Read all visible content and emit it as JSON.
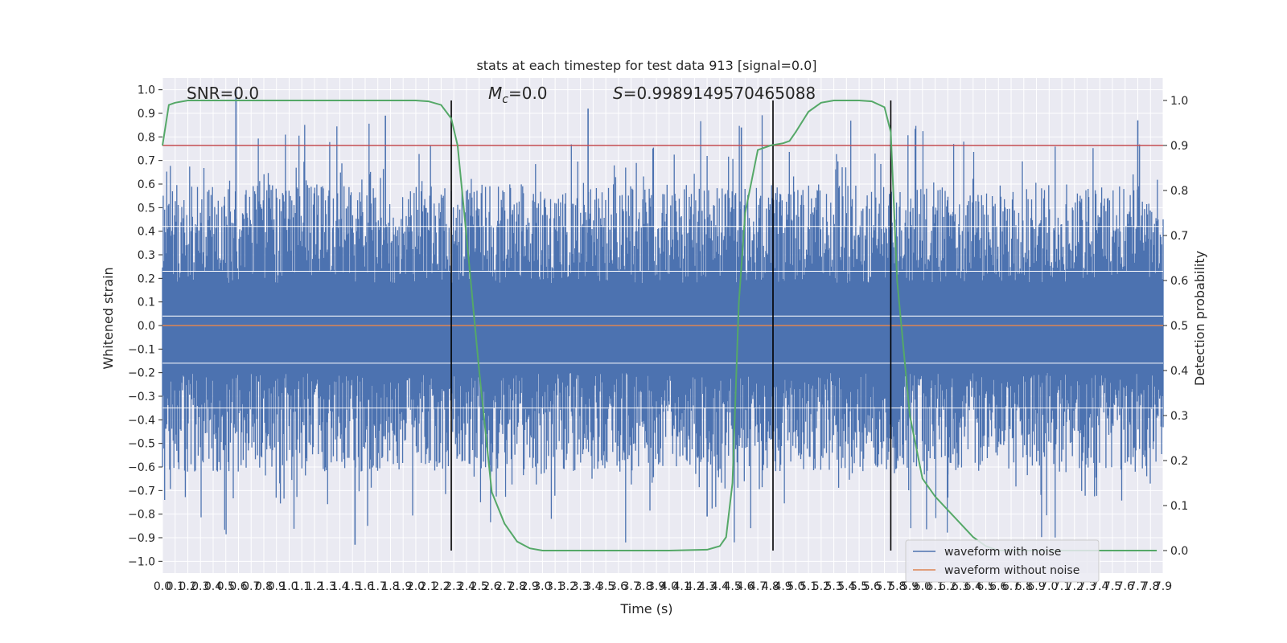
{
  "chart_data": {
    "type": "line",
    "title": "stats at each timestep for test data 913 [signal=0.0]",
    "xlabel": "Time (s)",
    "ylabel": "Whitened strain",
    "y2label": "Detection probability",
    "xlim": [
      0,
      7.9
    ],
    "ylim": [
      -1.05,
      1.05
    ],
    "y2lim": [
      -0.05,
      1.05
    ],
    "xticks": [
      "0.0",
      "0.1",
      "0.2",
      "0.3",
      "0.4",
      "0.5",
      "0.6",
      "0.7",
      "0.8",
      "0.9",
      "1.0",
      "1.1",
      "1.2",
      "1.3",
      "1.4",
      "1.5",
      "1.6",
      "1.7",
      "1.8",
      "1.9",
      "2.0",
      "2.1",
      "2.2",
      "2.3",
      "2.4",
      "2.5",
      "2.6",
      "2.7",
      "2.8",
      "2.9",
      "3.0",
      "3.1",
      "3.2",
      "3.3",
      "3.4",
      "3.5",
      "3.6",
      "3.7",
      "3.8",
      "3.9",
      "4.0",
      "4.1",
      "4.2",
      "4.3",
      "4.4",
      "4.5",
      "4.6",
      "4.7",
      "4.8",
      "4.9",
      "5.0",
      "5.1",
      "5.2",
      "5.3",
      "5.4",
      "5.5",
      "5.6",
      "5.7",
      "5.8",
      "5.9",
      "6.0",
      "6.1",
      "6.2",
      "6.3",
      "6.4",
      "6.5",
      "6.6",
      "6.7",
      "6.8",
      "6.9",
      "7.0",
      "7.1",
      "7.2",
      "7.3",
      "7.4",
      "7.5",
      "7.6",
      "7.7",
      "7.8",
      "7.9"
    ],
    "yticks": [
      "1.0",
      "0.9",
      "0.8",
      "0.7",
      "0.6",
      "0.5",
      "0.4",
      "0.3",
      "0.2",
      "0.1",
      "0.0",
      "−0.1",
      "−0.2",
      "−0.3",
      "−0.4",
      "−0.5",
      "−0.6",
      "−0.7",
      "−0.8",
      "−0.9",
      "−1.0"
    ],
    "y2ticks": [
      "1.0",
      "0.9",
      "0.8",
      "0.7",
      "0.6",
      "0.5",
      "0.4",
      "0.3",
      "0.2",
      "0.1",
      "0.0"
    ],
    "annotations": {
      "snr": "SNR=0.0",
      "mc": "M",
      "mc_sub": "c",
      "mc_val": "=0.0",
      "s": "S",
      "s_val": "=0.9989149570465088"
    },
    "threshold": 0.9,
    "event_lines": [
      2.28,
      4.82,
      5.75
    ],
    "noise_envelope": 0.42,
    "noise_peaks": [
      [
        0.58,
        1.0
      ],
      [
        1.76,
        0.89
      ],
      [
        3.36,
        0.92
      ],
      [
        4.57,
        0.84
      ],
      [
        7.7,
        0.87
      ],
      [
        1.52,
        -0.93
      ],
      [
        4.3,
        -0.81
      ],
      [
        6.2,
        -0.73
      ]
    ],
    "series": [
      {
        "name": "waveform with noise",
        "color": "#4c72b0"
      },
      {
        "name": "waveform without noise",
        "color": "#dd8452",
        "x": [
          0,
          7.9
        ],
        "y": [
          0,
          0
        ]
      },
      {
        "color": "#55a868",
        "x": [
          0,
          0.05,
          0.1,
          0.2,
          0.5,
          1.0,
          1.5,
          2.0,
          2.1,
          2.2,
          2.28,
          2.33,
          2.4,
          2.5,
          2.6,
          2.7,
          2.8,
          2.9,
          3.0,
          3.5,
          4.0,
          4.3,
          4.4,
          4.45,
          4.5,
          4.55,
          4.6,
          4.7,
          4.8,
          4.9,
          4.95,
          5.0,
          5.1,
          5.2,
          5.3,
          5.4,
          5.5,
          5.6,
          5.7,
          5.75,
          5.8,
          5.9,
          6.0,
          6.1,
          6.2,
          6.3,
          6.4,
          6.5,
          6.6,
          6.7,
          7.0,
          7.5,
          7.85
        ],
        "y": [
          0.9,
          0.99,
          0.995,
          1.0,
          1.0,
          1.0,
          1.0,
          1.0,
          0.998,
          0.99,
          0.96,
          0.9,
          0.7,
          0.4,
          0.13,
          0.06,
          0.02,
          0.005,
          0.0,
          0.0,
          0.0,
          0.002,
          0.01,
          0.03,
          0.15,
          0.55,
          0.75,
          0.89,
          0.9,
          0.905,
          0.91,
          0.93,
          0.975,
          0.995,
          1.0,
          1.0,
          1.0,
          0.998,
          0.985,
          0.93,
          0.6,
          0.3,
          0.16,
          0.12,
          0.09,
          0.06,
          0.03,
          0.01,
          0.0,
          0.0,
          0.0,
          0.0,
          0.0
        ]
      }
    ]
  }
}
